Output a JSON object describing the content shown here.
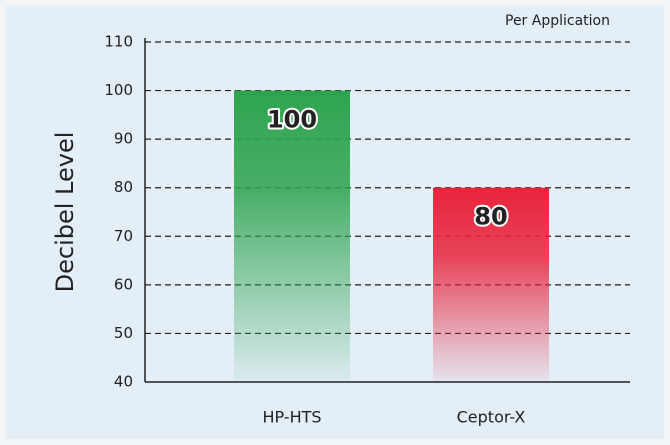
{
  "chart_data": {
    "type": "bar",
    "annotation": "Per Application",
    "y_label": "Decibel Level",
    "categories": [
      "HP-HTS",
      "Ceptor-X"
    ],
    "values": [
      100,
      80
    ],
    "colors": [
      "#2ea44f",
      "#e8243c"
    ],
    "ylim": [
      40,
      110
    ],
    "yticks": [
      40,
      50,
      60,
      70,
      80,
      90,
      100,
      110
    ],
    "grid": true
  }
}
